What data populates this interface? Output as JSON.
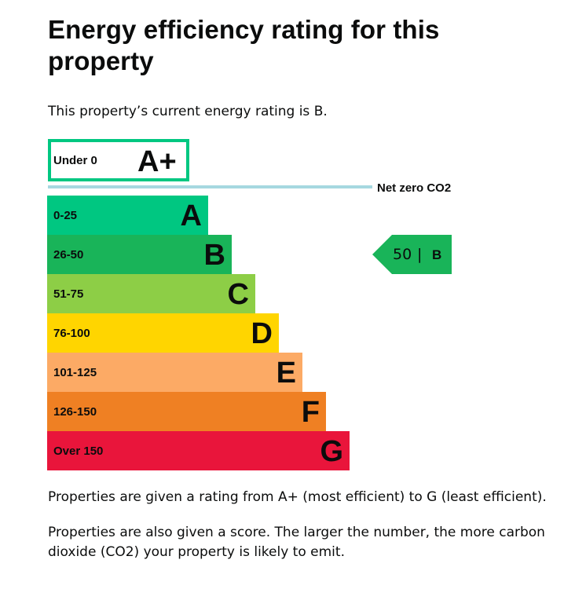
{
  "page": {
    "title": "Energy efficiency rating for this property",
    "intro": "This property’s current energy rating is B.",
    "explanation_1": "Properties are given a rating from A+ (most efficient) to G (least efficient).",
    "explanation_2": "Properties are also given a score. The larger the number, the more carbon dioxide (CO2) your property is likely to emit."
  },
  "rating_chart": {
    "top_band": {
      "range": "Under 0",
      "letter": "A+",
      "color": "#00c781"
    },
    "net_zero_label": "Net zero CO2",
    "net_zero_line_color": "#a6d8e0",
    "bands": [
      {
        "range": "0-25",
        "letter": "A",
        "color": "#00c781"
      },
      {
        "range": "26-50",
        "letter": "B",
        "color": "#19b459"
      },
      {
        "range": "51-75",
        "letter": "C",
        "color": "#8dce46"
      },
      {
        "range": "76-100",
        "letter": "D",
        "color": "#ffd500"
      },
      {
        "range": "101-125",
        "letter": "E",
        "color": "#fcaa65"
      },
      {
        "range": "126-150",
        "letter": "F",
        "color": "#ef8023"
      },
      {
        "range": "Over 150",
        "letter": "G",
        "color": "#e9153b"
      }
    ],
    "current": {
      "score": "50",
      "separator": "|",
      "letter": "B",
      "color": "#19b459"
    }
  }
}
